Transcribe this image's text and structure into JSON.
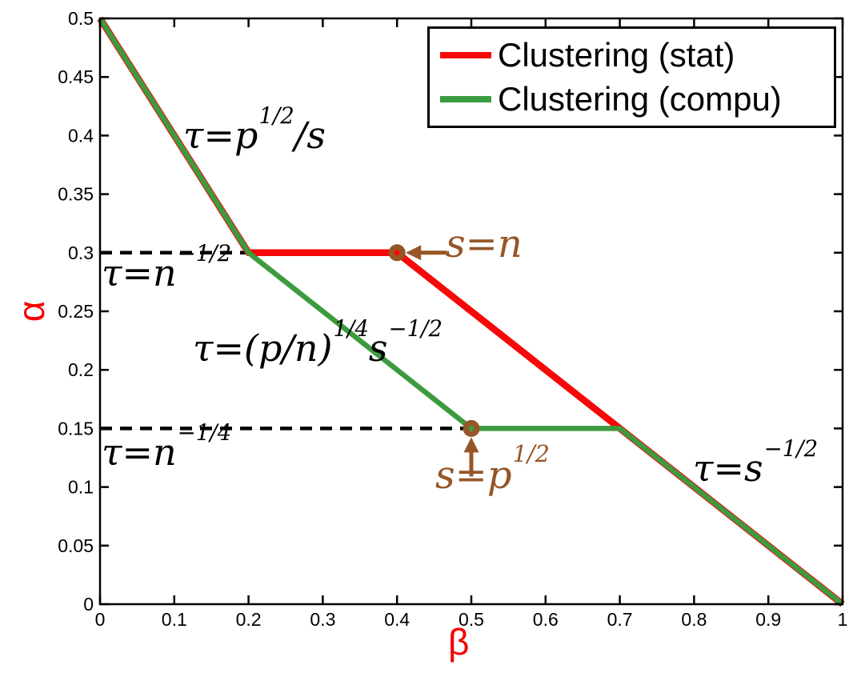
{
  "chart_data": {
    "type": "line",
    "title": "",
    "xlabel": "β",
    "ylabel": "α",
    "xlim": [
      0,
      1
    ],
    "ylim": [
      0,
      0.5
    ],
    "grid": false,
    "legend_position": "top-right",
    "xticks": {
      "values": [
        0,
        0.1,
        0.2,
        0.3,
        0.4,
        0.5,
        0.6,
        0.7,
        0.8,
        0.9,
        1
      ],
      "labels": [
        "0",
        "0.1",
        "0.2",
        "0.3",
        "0.4",
        "0.5",
        "0.6",
        "0.7",
        "0.8",
        "0.9",
        "1"
      ]
    },
    "yticks": {
      "values": [
        0,
        0.05,
        0.1,
        0.15,
        0.2,
        0.25,
        0.3,
        0.35,
        0.4,
        0.45,
        0.5
      ],
      "labels": [
        "0",
        "0.05",
        "0.1",
        "0.15",
        "0.2",
        "0.25",
        "0.3",
        "0.35",
        "0.4",
        "0.45",
        "0.5"
      ]
    },
    "series": [
      {
        "name": "Clustering (stat)",
        "color": "#f60909",
        "x": [
          0,
          0.2,
          0.4,
          1
        ],
        "y": [
          0.5,
          0.3,
          0.3,
          0
        ]
      },
      {
        "name": "Clustering (compu)",
        "color": "#3c9b3e",
        "x": [
          0,
          0.2,
          0.5,
          0.7,
          1
        ],
        "y": [
          0.5,
          0.3,
          0.15,
          0.15,
          0
        ]
      }
    ],
    "dashed_guides": [
      {
        "y": 0.3,
        "x_from": 0,
        "x_to": 0.2
      },
      {
        "y": 0.15,
        "x_from": 0,
        "x_to": 0.5
      }
    ],
    "point_markers": [
      {
        "x": 0.4,
        "y": 0.3,
        "shape": "ring"
      },
      {
        "x": 0.5,
        "y": 0.15,
        "shape": "ring"
      }
    ],
    "arrows": [
      {
        "target_x": 0.4,
        "target_y": 0.3,
        "direction": "left",
        "label": "s=n"
      },
      {
        "target_x": 0.5,
        "target_y": 0.15,
        "direction": "up",
        "label": "s=p^(1/2)"
      }
    ]
  },
  "formulas": {
    "tau_sqrtp_over_s": {
      "p1": "τ=p",
      "sup1": "1/2",
      "p2": "/s"
    },
    "tau_n_neg_half": {
      "p1": "τ=n",
      "sup1": "−1/2"
    },
    "tau_pn_quarter_s_neg_half": {
      "p1": "τ=(p/n)",
      "sup1": "1/4",
      "p2": "s",
      "sup2": "−1/2"
    },
    "tau_n_neg_quarter": {
      "p1": "τ=n",
      "sup1": "−1/4"
    },
    "tau_s_neg_half": {
      "p1": "τ=s",
      "sup1": "−1/2"
    },
    "s_eq_n": {
      "p1": "s=n"
    },
    "s_eq_sqrt_p": {
      "p1": "s=p",
      "sup1": "1/2"
    }
  },
  "colors": {
    "stat_red": "#f60909",
    "compu_green": "#3c9b3e",
    "annotation_brown": "#965627",
    "dashed": "#000000",
    "axis": "#000000",
    "axis_label_red": "#f60000"
  }
}
